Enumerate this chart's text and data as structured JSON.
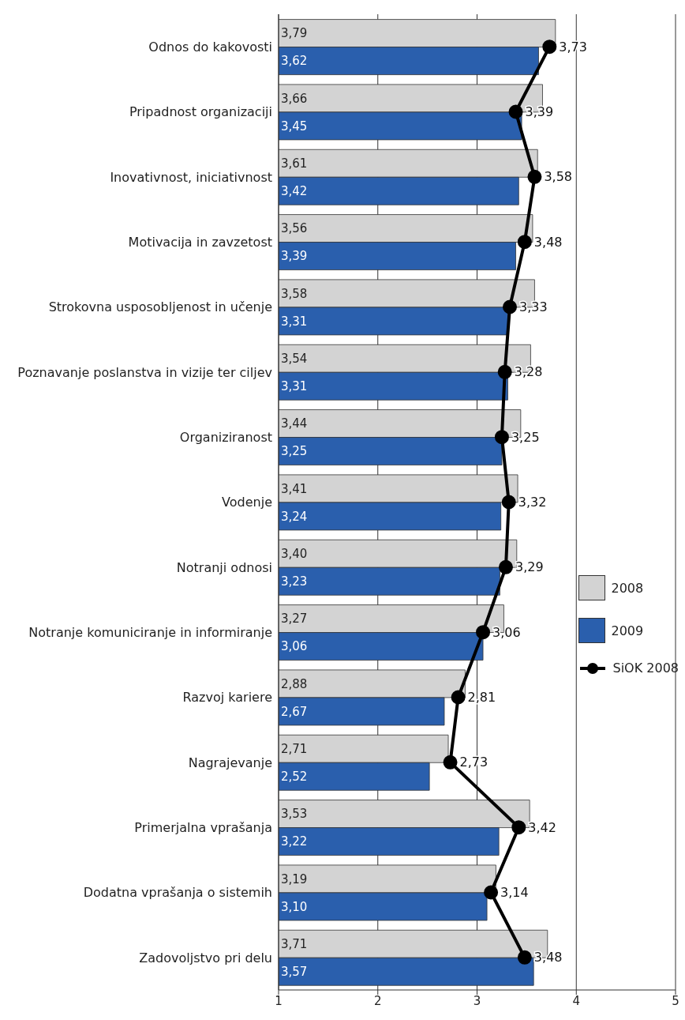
{
  "chart_data": {
    "type": "bar",
    "orientation": "horizontal",
    "categories": [
      "Odnos do kakovosti",
      "Pripadnost organizaciji",
      "Inovativnost, iniciativnost",
      "Motivacija in zavzetost",
      "Strokovna usposobljenost in učenje",
      "Poznavanje poslanstva in vizije ter ciljev",
      "Organiziranost",
      "Vodenje",
      "Notranji odnosi",
      "Notranje komuniciranje in informiranje",
      "Razvoj kariere",
      "Nagrajevanje",
      "Primerjalna vprašanja",
      "Dodatna vprašanja o sistemih",
      "Zadovoljstvo pri delu"
    ],
    "series": [
      {
        "name": "2008",
        "color": "#d3d3d3",
        "values": [
          3.79,
          3.66,
          3.61,
          3.56,
          3.58,
          3.54,
          3.44,
          3.41,
          3.4,
          3.27,
          2.88,
          2.71,
          3.53,
          3.19,
          3.71
        ],
        "value_labels": [
          "3,79",
          "3,66",
          "3,61",
          "3,56",
          "3,58",
          "3,54",
          "3,44",
          "3,41",
          "3,40",
          "3,27",
          "2,88",
          "2,71",
          "3,53",
          "3,19",
          "3,71"
        ]
      },
      {
        "name": "2009",
        "color": "#2a5fad",
        "values": [
          3.62,
          3.45,
          3.42,
          3.39,
          3.31,
          3.31,
          3.25,
          3.24,
          3.23,
          3.06,
          2.67,
          2.52,
          3.22,
          3.1,
          3.57
        ],
        "value_labels": [
          "3,62",
          "3,45",
          "3,42",
          "3,39",
          "3,31",
          "3,31",
          "3,25",
          "3,24",
          "3,23",
          "3,06",
          "2,67",
          "2,52",
          "3,22",
          "3,10",
          "3,57"
        ]
      },
      {
        "name": "SiOK 2008",
        "type": "line",
        "color": "#000000",
        "values": [
          3.73,
          3.39,
          3.58,
          3.48,
          3.33,
          3.28,
          3.25,
          3.32,
          3.29,
          3.06,
          2.81,
          2.73,
          3.42,
          3.14,
          3.48
        ],
        "value_labels": [
          "3,73",
          "3,39",
          "3,58",
          "3,48",
          "3,33",
          "3,28",
          "3,25",
          "3,32",
          "3,29",
          "3,06",
          "2,81",
          "2,73",
          "3,42",
          "3,14",
          "3,48"
        ]
      }
    ],
    "xlim": [
      1,
      5
    ],
    "xticks": [
      1,
      2,
      3,
      4,
      5
    ],
    "grid": "x",
    "legend": "right",
    "marker": "circle"
  }
}
